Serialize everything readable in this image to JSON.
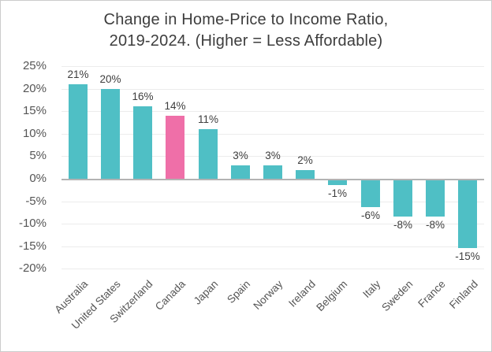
{
  "chart_data": {
    "type": "bar",
    "title": "Change in Home-Price to Income Ratio, 2019-2024. (Higher = Less Affordable)",
    "title_line1": "Change in Home-Price to Income Ratio,",
    "title_line2": "2019-2024. (Higher = Less Affordable)",
    "categories": [
      "Australia",
      "United States",
      "Switzerland",
      "Canada",
      "Japan",
      "Spain",
      "Norway",
      "Ireland",
      "Belgium",
      "Italy",
      "Sweden",
      "France",
      "Finland"
    ],
    "values": [
      21,
      20,
      16,
      14,
      11,
      3,
      3,
      2,
      -1,
      -6,
      -8,
      -8,
      -15
    ],
    "value_labels": [
      "21%",
      "20%",
      "16%",
      "14%",
      "11%",
      "3%",
      "3%",
      "2%",
      "-1%",
      "-6%",
      "-8%",
      "-8%",
      "-15%"
    ],
    "highlight_category": "Canada",
    "xlabel": "",
    "ylabel": "",
    "ylim": [
      -20,
      25
    ],
    "ytick_step": 5,
    "ytick_labels": [
      "25%",
      "20%",
      "15%",
      "10%",
      "5%",
      "0%",
      "-5%",
      "-10%",
      "-15%",
      "-20%"
    ],
    "grid": "horizontal",
    "legend": "none",
    "colors": {
      "bar": "#4FBFC5",
      "highlight": "#EF6FA8",
      "gridline": "#ECECEC",
      "zero_line": "#B3B3B3",
      "title_text": "#3D3D3D",
      "value_text": "#3D3D3D",
      "axis_text": "#555555",
      "background": "#FFFFFF",
      "border": "#CCCCCC"
    }
  }
}
